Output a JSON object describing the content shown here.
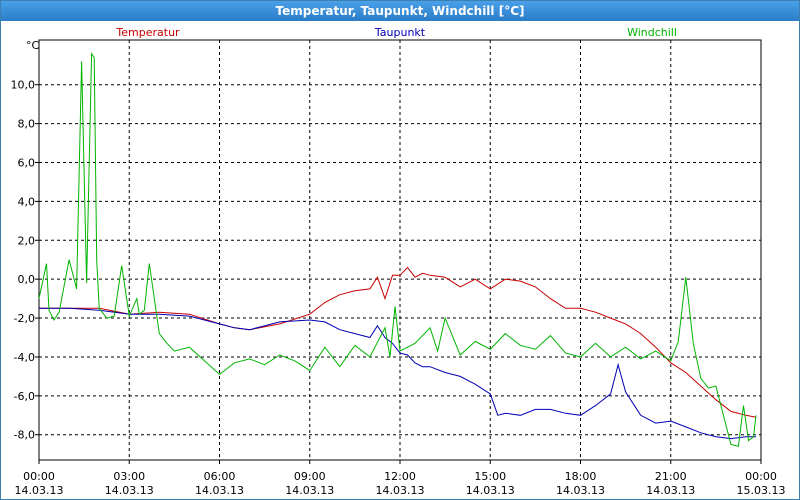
{
  "window": {
    "title": "Temperatur, Taupunkt, Windchill [°C]"
  },
  "chart_data": {
    "type": "line",
    "title": "Temperatur, Taupunkt, Windchill [°C]",
    "yunit": "°C",
    "ylim": [
      -9.3,
      12.3
    ],
    "yticks": [
      "10,0",
      "8,0",
      "6,0",
      "4,0",
      "2,0",
      "0,0",
      "-2,0",
      "-4,0",
      "-6,0",
      "-8,0"
    ],
    "ytick_values": [
      10,
      8,
      6,
      4,
      2,
      0,
      -2,
      -4,
      -6,
      -8
    ],
    "xlim": [
      "14.03.13 00:00",
      "15.03.13 00:00"
    ],
    "xtick_times": [
      "00:00",
      "03:00",
      "06:00",
      "09:00",
      "12:00",
      "15:00",
      "18:00",
      "21:00",
      "00:00"
    ],
    "xtick_dates": [
      "14.03.13",
      "14.03.13",
      "14.03.13",
      "14.03.13",
      "14.03.13",
      "14.03.13",
      "14.03.13",
      "14.03.13",
      "15.03.13"
    ],
    "grid": true,
    "series": [
      {
        "name": "Temperatur",
        "color": "#c80000",
        "x": [
          "00:00",
          "01:00",
          "02:00",
          "03:00",
          "04:00",
          "05:00",
          "06:00",
          "06:30",
          "07:00",
          "08:00",
          "09:00",
          "09:30",
          "10:00",
          "10:30",
          "11:00",
          "11:15",
          "11:30",
          "11:45",
          "12:00",
          "12:15",
          "12:30",
          "12:45",
          "13:00",
          "13:30",
          "14:00",
          "14:30",
          "15:00",
          "15:30",
          "16:00",
          "16:30",
          "17:00",
          "17:30",
          "18:00",
          "18:30",
          "19:00",
          "19:30",
          "20:00",
          "20:30",
          "21:00",
          "21:30",
          "22:00",
          "22:30",
          "23:00",
          "23:30",
          "23:50"
        ],
        "values": [
          -1.5,
          -1.5,
          -1.5,
          -1.8,
          -1.7,
          -1.8,
          -2.3,
          -2.5,
          -2.6,
          -2.3,
          -1.8,
          -1.2,
          -0.8,
          -0.6,
          -0.5,
          0.1,
          -1.0,
          0.2,
          0.2,
          0.6,
          0.1,
          0.3,
          0.2,
          0.1,
          -0.4,
          0.0,
          -0.5,
          0.0,
          -0.1,
          -0.4,
          -1.0,
          -1.5,
          -1.5,
          -1.7,
          -2.0,
          -2.3,
          -2.8,
          -3.5,
          -4.3,
          -4.8,
          -5.5,
          -6.2,
          -6.8,
          -7.0,
          -7.1
        ]
      },
      {
        "name": "Taupunkt",
        "color": "#0000b4",
        "x": [
          "00:00",
          "01:00",
          "02:00",
          "03:00",
          "04:00",
          "05:00",
          "06:00",
          "06:30",
          "07:00",
          "08:00",
          "09:00",
          "09:30",
          "10:00",
          "10:30",
          "11:00",
          "11:15",
          "11:30",
          "11:45",
          "12:00",
          "12:15",
          "12:30",
          "12:45",
          "13:00",
          "13:30",
          "14:00",
          "14:30",
          "15:00",
          "15:15",
          "15:30",
          "16:00",
          "16:30",
          "17:00",
          "17:30",
          "18:00",
          "18:30",
          "19:00",
          "19:15",
          "19:30",
          "20:00",
          "20:30",
          "21:00",
          "21:30",
          "22:00",
          "22:30",
          "23:00",
          "23:30",
          "23:50"
        ],
        "values": [
          -1.5,
          -1.5,
          -1.6,
          -1.8,
          -1.8,
          -1.9,
          -2.3,
          -2.5,
          -2.6,
          -2.2,
          -2.1,
          -2.2,
          -2.6,
          -2.8,
          -3.0,
          -2.4,
          -3.0,
          -3.3,
          -3.8,
          -3.9,
          -4.3,
          -4.5,
          -4.5,
          -4.8,
          -5.0,
          -5.4,
          -5.9,
          -7.0,
          -6.9,
          -7.0,
          -6.7,
          -6.7,
          -6.9,
          -7.0,
          -6.5,
          -5.9,
          -4.4,
          -5.8,
          -7.0,
          -7.4,
          -7.3,
          -7.6,
          -7.9,
          -8.1,
          -8.2,
          -8.1,
          -8.1
        ]
      },
      {
        "name": "Windchill",
        "color": "#00b400",
        "x": [
          "00:00",
          "00:15",
          "00:20",
          "00:30",
          "00:40",
          "01:00",
          "01:15",
          "01:25",
          "01:35",
          "01:45",
          "01:50",
          "01:55",
          "02:00",
          "02:15",
          "02:30",
          "02:45",
          "03:00",
          "03:15",
          "03:20",
          "03:30",
          "03:40",
          "03:50",
          "04:00",
          "04:15",
          "04:30",
          "05:00",
          "06:00",
          "06:30",
          "07:00",
          "07:30",
          "08:00",
          "08:30",
          "09:00",
          "09:30",
          "10:00",
          "10:30",
          "11:00",
          "11:30",
          "11:40",
          "11:50",
          "12:00",
          "12:30",
          "13:00",
          "13:15",
          "13:30",
          "14:00",
          "14:30",
          "15:00",
          "15:30",
          "16:00",
          "16:30",
          "17:00",
          "17:30",
          "18:00",
          "18:30",
          "19:00",
          "19:30",
          "20:00",
          "20:30",
          "21:00",
          "21:15",
          "21:30",
          "21:45",
          "22:00",
          "22:15",
          "22:30",
          "22:45",
          "23:00",
          "23:15",
          "23:25",
          "23:35",
          "23:45",
          "23:50"
        ],
        "values": [
          -1.0,
          0.8,
          -1.6,
          -2.1,
          -1.7,
          1.0,
          -0.5,
          11.2,
          -0.2,
          11.6,
          11.4,
          1.0,
          -1.5,
          -2.0,
          -1.9,
          0.7,
          -1.9,
          -1.0,
          -1.8,
          -1.6,
          0.8,
          -1.0,
          -2.8,
          -3.3,
          -3.7,
          -3.5,
          -4.9,
          -4.3,
          -4.1,
          -4.4,
          -3.9,
          -4.2,
          -4.7,
          -3.5,
          -4.5,
          -3.4,
          -4.0,
          -2.5,
          -4.0,
          -1.4,
          -3.7,
          -3.3,
          -2.5,
          -3.7,
          -2.0,
          -3.9,
          -3.2,
          -3.6,
          -2.8,
          -3.4,
          -3.6,
          -2.9,
          -3.8,
          -4.0,
          -3.3,
          -4.0,
          -3.5,
          -4.1,
          -3.7,
          -4.2,
          -3.2,
          0.1,
          -3.3,
          -5.1,
          -5.6,
          -5.5,
          -7.0,
          -8.5,
          -8.6,
          -6.5,
          -8.3,
          -8.1,
          -7.0
        ]
      }
    ]
  }
}
